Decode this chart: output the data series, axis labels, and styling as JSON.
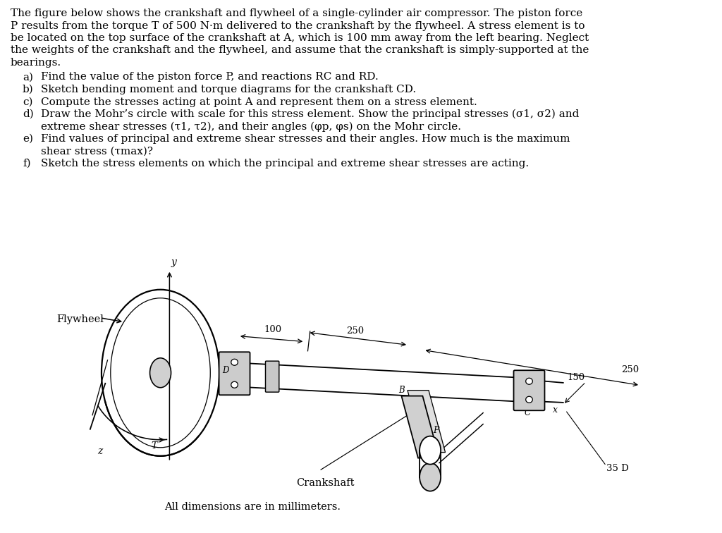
{
  "bg_color": "#ffffff",
  "text_color": "#000000",
  "fig_width": 10.24,
  "fig_height": 7.56,
  "dpi": 100,
  "para_lines": [
    "The figure below shows the crankshaft and flywheel of a single-cylinder air compressor. The piston force",
    "P results from the torque T of 500 N·m delivered to the crankshaft by the flywheel. A stress element is to",
    "be located on the top surface of the crankshaft at A, which is 100 mm away from the left bearing. Neglect",
    "the weights of the crankshaft and the flywheel, and assume that the crankshaft is simply-supported at the",
    "bearings."
  ],
  "list_items": [
    [
      "a)",
      "Find the value of the piston force P, and reactions RC and RD."
    ],
    [
      "b)",
      "Sketch bending moment and torque diagrams for the crankshaft CD."
    ],
    [
      "c)",
      "Compute the stresses acting at point A and represent them on a stress element."
    ],
    [
      "d)",
      "Draw the Mohr’s circle with scale for this stress element. Show the principal stresses (σ1, σ2) and"
    ],
    [
      "",
      "extreme shear stresses (τ1, τ2), and their angles (φp, φs) on the Mohr circle."
    ],
    [
      "e)",
      "Find values of principal and extreme shear stresses and their angles. How much is the maximum"
    ],
    [
      "",
      "shear stress (τmax)?"
    ],
    [
      "f)",
      "Sketch the stress elements on which the principal and extreme shear stresses are acting."
    ]
  ],
  "footer": "All dimensions are in millimeters."
}
